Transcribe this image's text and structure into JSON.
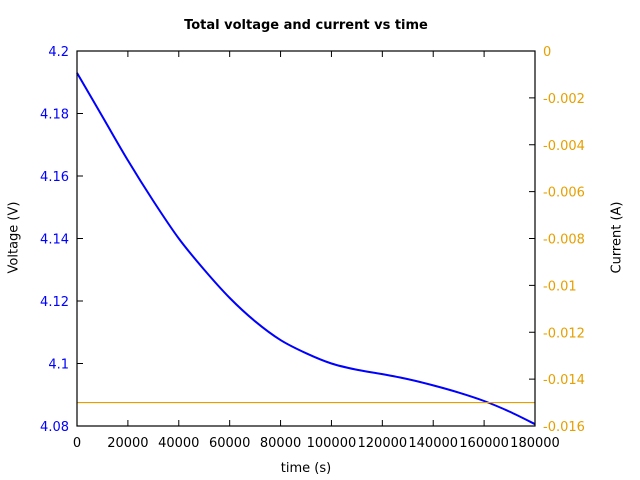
{
  "chart_data": {
    "type": "line",
    "title": "Total voltage and current vs time",
    "xlabel": "time (s)",
    "ylabel": "Voltage (V)",
    "y2label": "Current (A)",
    "xlim": [
      0,
      180000
    ],
    "ylim": [
      4.08,
      4.2
    ],
    "y2lim": [
      -0.016,
      0
    ],
    "xticks": [
      "0",
      "20000",
      "40000",
      "60000",
      "80000",
      "100000",
      "120000",
      "140000",
      "160000",
      "180000"
    ],
    "yticks": [
      "4.08",
      "4.1",
      "4.12",
      "4.14",
      "4.16",
      "4.18",
      "4.2"
    ],
    "y2ticks": [
      "-0.016",
      "-0.014",
      "-0.012",
      "-0.01",
      "-0.008",
      "-0.006",
      "-0.004",
      "-0.002",
      "0"
    ],
    "grid": false,
    "legend": null,
    "colors": {
      "voltage": "#0000ff",
      "current": "#e69f00",
      "left_axis_text": "#0000ff",
      "right_axis_text": "#e69f00"
    },
    "series": [
      {
        "name": "Voltage",
        "axis": "left",
        "x": [
          0,
          10000,
          20000,
          30000,
          40000,
          50000,
          60000,
          70000,
          80000,
          90000,
          100000,
          110000,
          120000,
          130000,
          140000,
          150000,
          160000,
          170000,
          180000
        ],
        "values": [
          4.193,
          4.179,
          4.165,
          4.152,
          4.14,
          4.13,
          4.121,
          4.1135,
          4.1075,
          4.1033,
          4.1,
          4.098,
          4.0966,
          4.095,
          4.093,
          4.0907,
          4.088,
          4.0846,
          4.0806
        ]
      },
      {
        "name": "Current",
        "axis": "right",
        "x": [
          0,
          180000
        ],
        "values": [
          -0.015,
          -0.015
        ]
      }
    ]
  }
}
